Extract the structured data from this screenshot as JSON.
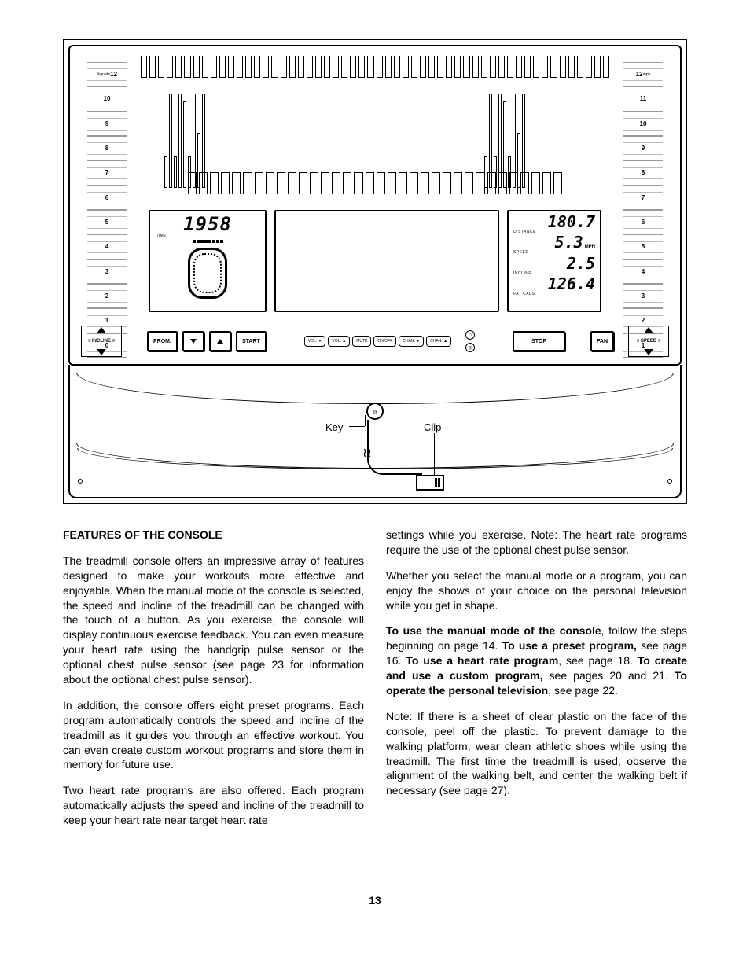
{
  "page_number": "13",
  "figure": {
    "incline_scale": {
      "label_prefix": "%grade",
      "values": [
        "12",
        "10",
        "9",
        "8",
        "7",
        "6",
        "5",
        "4",
        "3",
        "2",
        "1",
        "0"
      ]
    },
    "speed_scale": {
      "label_suffix": "mph",
      "values": [
        "12",
        "11",
        "10",
        "9",
        "8",
        "7",
        "6",
        "5",
        "4",
        "3",
        "2",
        "1"
      ]
    },
    "display_left": {
      "time_value": "1958",
      "time_label": "TIME"
    },
    "display_right": {
      "distance_value": "180.7",
      "distance_label": "DISTANCE",
      "speed_value": "5.3",
      "speed_unit": "MPH",
      "speed_label": "SPEED",
      "incline_value": "2.5",
      "incline_label": "INCLINE",
      "fatcals_value": "126.4",
      "fatcals_label": "FAT CALS."
    },
    "controls": {
      "incline_label": "INCLINE",
      "speed_label": "SPEED",
      "prom": "PROM.",
      "start": "START",
      "stop": "STOP",
      "fan": "FAN",
      "pills": [
        "VOL. ▼",
        "VOL. ▲",
        "MUTE",
        "ON/OFF",
        "CHAN. ▼",
        "CHAN. ▲"
      ]
    },
    "callouts": {
      "key": "Key",
      "clip": "Clip"
    }
  },
  "body": {
    "heading": "FEATURES OF THE CONSOLE",
    "left": {
      "p1": "The treadmill console offers an impressive array of features designed to make your workouts more effective and enjoyable. When the manual mode of the console is selected, the speed and incline of the treadmill can be changed with the touch of a button. As you exercise, the console will display continuous exercise feedback. You can even measure your heart rate using the handgrip pulse sensor or the optional chest pulse sensor (see page 23 for information about the optional chest pulse sensor).",
      "p2": "In addition, the console offers eight preset programs. Each program automatically controls the speed and incline of the treadmill as it guides you through an effective workout. You can even create custom workout programs and store them in memory for future use.",
      "p3": "Two heart rate programs are also offered. Each program automatically adjusts the speed and incline of the treadmill to keep your heart rate near target heart rate"
    },
    "right": {
      "p1": "settings while you exercise. Note: The heart rate programs require the use of the optional chest pulse sensor.",
      "p2": "Whether you select the manual mode or a program, you can enjoy the shows of your choice on the personal television while you get in shape.",
      "p3_parts": {
        "b1": "To use the manual mode of the console",
        "t1": ", follow the steps beginning on page 14. ",
        "b2": "To use a preset program,",
        "t2": " see page 16. ",
        "b3": "To use a heart rate program",
        "t3": ", see page 18. ",
        "b4": "To create and use a custom program,",
        "t4": " see pages 20 and 21. ",
        "b5": "To operate the personal television",
        "t5": ", see page 22."
      },
      "p4": "Note: If there is a sheet of clear plastic on the face of the console, peel off the plastic. To prevent damage to the walking platform, wear clean athletic shoes while using the treadmill. The first time the treadmill is used, observe the alignment of the walking belt, and center the walking belt if necessary (see page 27)."
    }
  }
}
